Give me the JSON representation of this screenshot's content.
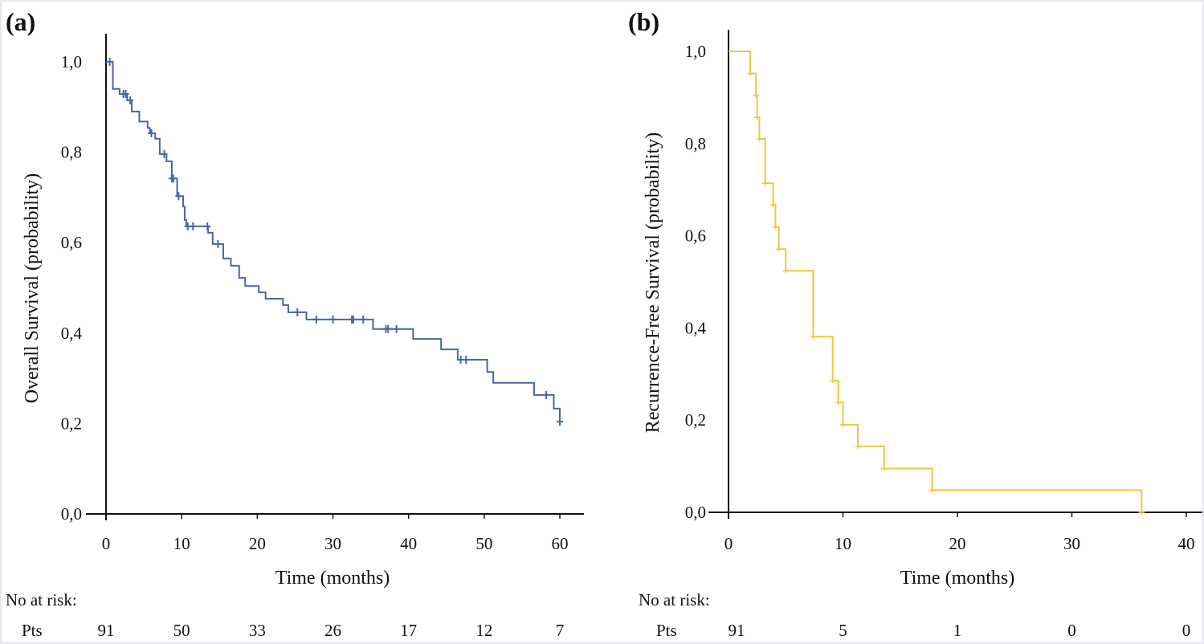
{
  "chart_data": [
    {
      "type": "line",
      "subtype": "kaplan-meier-step",
      "panel_label": "(a)",
      "xlabel": "Time (months)",
      "ylabel": "Overall Survival (probability)",
      "xlim": [
        0,
        60
      ],
      "ylim": [
        0,
        1
      ],
      "xticks": [
        "0",
        "10",
        "20",
        "30",
        "40",
        "50",
        "60"
      ],
      "yticks": [
        "0,0",
        "0,2",
        "0,4",
        "0,6",
        "0,8",
        "1,0"
      ],
      "color": "#4a66a8",
      "grid": false,
      "steps": [
        [
          0,
          1.0
        ],
        [
          0.9,
          0.94
        ],
        [
          1.8,
          0.929
        ],
        [
          2.8,
          0.915
        ],
        [
          3.4,
          0.89
        ],
        [
          4.4,
          0.868
        ],
        [
          5.5,
          0.854
        ],
        [
          5.8,
          0.842
        ],
        [
          6.5,
          0.83
        ],
        [
          7.1,
          0.796
        ],
        [
          8.0,
          0.78
        ],
        [
          8.7,
          0.742
        ],
        [
          9.4,
          0.703
        ],
        [
          10.2,
          0.68
        ],
        [
          10.4,
          0.65
        ],
        [
          10.6,
          0.636
        ],
        [
          13.5,
          0.622
        ],
        [
          14.1,
          0.597
        ],
        [
          15.5,
          0.565
        ],
        [
          16.5,
          0.549
        ],
        [
          17.6,
          0.522
        ],
        [
          18.4,
          0.504
        ],
        [
          20.2,
          0.49
        ],
        [
          21.1,
          0.476
        ],
        [
          23.4,
          0.462
        ],
        [
          24.1,
          0.446
        ],
        [
          26.5,
          0.43
        ],
        [
          35.3,
          0.409
        ],
        [
          40.6,
          0.387
        ],
        [
          44.3,
          0.364
        ],
        [
          46.5,
          0.341
        ],
        [
          50.4,
          0.314
        ],
        [
          51.2,
          0.29
        ],
        [
          56.6,
          0.263
        ],
        [
          59.2,
          0.233
        ],
        [
          60.0,
          0.204
        ]
      ],
      "censored": [
        0.5,
        2.3,
        2.6,
        3.2,
        6.0,
        7.7,
        8.7,
        8.9,
        9.6,
        10.8,
        11.5,
        13.4,
        14.8,
        25.3,
        27.8,
        30.0,
        32.5,
        32.7,
        34.0,
        37.0,
        37.3,
        38.4,
        46.9,
        47.6,
        58.2,
        60.0
      ],
      "risk_table": {
        "title": "No at risk:",
        "row_label": "Pts",
        "times": [
          0,
          10,
          20,
          30,
          40,
          50,
          60
        ],
        "values": [
          "91",
          "50",
          "33",
          "26",
          "17",
          "12",
          "7"
        ]
      }
    },
    {
      "type": "line",
      "subtype": "kaplan-meier-step",
      "panel_label": "(b)",
      "xlabel": "Time (months)",
      "ylabel": "Recurrence-Free Survival (probability)",
      "xlim": [
        0,
        40
      ],
      "ylim": [
        0,
        1
      ],
      "xticks": [
        "0",
        "10",
        "20",
        "30",
        "40"
      ],
      "yticks": [
        "0,0",
        "0,2",
        "0,4",
        "0,6",
        "0,8",
        "1,0"
      ],
      "color": "#f2c441",
      "grid": false,
      "steps": [
        [
          0,
          1.0
        ],
        [
          1.9,
          0.952
        ],
        [
          2.4,
          0.905
        ],
        [
          2.5,
          0.857
        ],
        [
          2.7,
          0.81
        ],
        [
          3.2,
          0.714
        ],
        [
          3.9,
          0.667
        ],
        [
          4.1,
          0.619
        ],
        [
          4.4,
          0.571
        ],
        [
          5.0,
          0.524
        ],
        [
          7.4,
          0.381
        ],
        [
          9.1,
          0.286
        ],
        [
          9.6,
          0.238
        ],
        [
          10.0,
          0.19
        ],
        [
          11.3,
          0.143
        ],
        [
          13.6,
          0.095
        ],
        [
          17.8,
          0.048
        ],
        [
          36.1,
          0.0
        ]
      ],
      "censored": [],
      "risk_table": {
        "title": "No at risk:",
        "row_label": "Pts",
        "times": [
          0,
          10,
          20,
          30,
          40
        ],
        "values": [
          "91",
          "5",
          "1",
          "0",
          "0"
        ]
      }
    }
  ]
}
